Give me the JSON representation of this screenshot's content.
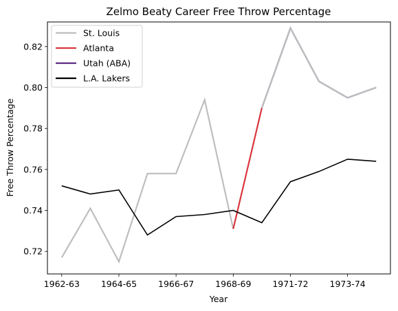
{
  "chart_data": {
    "type": "line",
    "title": "Zelmo Beaty Career Free Throw Percentage",
    "xlabel": "Year",
    "ylabel": "Free Throw Percentage",
    "x_tick_labels": [
      "1962-63",
      "1964-65",
      "1966-67",
      "1968-69",
      "1971-72",
      "1973-74"
    ],
    "y_ticks": [
      0.72,
      0.74,
      0.76,
      0.78,
      0.8,
      0.82
    ],
    "y_tick_labels": [
      "0.72",
      "0.74",
      "0.76",
      "0.78",
      "0.80",
      "0.82"
    ],
    "ylim": [
      0.709,
      0.832
    ],
    "legend_position": "top-left",
    "series": [
      {
        "name": "St. Louis",
        "color": "#bebebe",
        "x": [
          0,
          1,
          2,
          3,
          4,
          5,
          6
        ],
        "values": [
          0.717,
          0.741,
          0.715,
          0.758,
          0.758,
          0.794,
          0.731
        ]
      },
      {
        "name": "Atlanta",
        "color": "#d9363e",
        "x": [
          6,
          7
        ],
        "values": [
          0.731,
          0.79
        ]
      },
      {
        "name": "Utah (ABA)",
        "color": "#5b2c82",
        "x": [
          7,
          8,
          9,
          10,
          11
        ],
        "values": [
          0.79,
          0.829,
          0.803,
          0.795,
          0.8
        ]
      },
      {
        "name": "L.A. Lakers",
        "color": "#000000",
        "x": [
          0,
          1,
          2,
          3,
          4,
          5,
          6,
          7,
          8,
          9,
          10,
          11
        ],
        "values": [
          0.752,
          0.748,
          0.75,
          0.728,
          0.737,
          0.738,
          0.74,
          0.734,
          0.754,
          0.759,
          0.765,
          0.764
        ]
      }
    ],
    "grey_overlay": {
      "color": "#bebebe",
      "x": [
        7,
        8,
        9,
        10,
        11
      ],
      "values": [
        0.79,
        0.829,
        0.803,
        0.795,
        0.8
      ]
    }
  }
}
